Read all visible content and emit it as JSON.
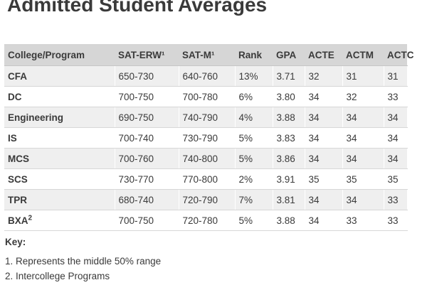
{
  "title": "Admitted Student Averages",
  "table": {
    "headers": [
      "College/Program",
      "SAT-ERW¹",
      "SAT-M¹",
      "Rank",
      "GPA",
      "ACTE",
      "ACTM",
      "ACTC"
    ],
    "rows": [
      {
        "program": "CFA",
        "program_sup": "",
        "sat_erw": "650-730",
        "sat_m": "640-760",
        "rank": "13%",
        "gpa": "3.71",
        "acte": "32",
        "actm": "31",
        "actc": "31"
      },
      {
        "program": "DC",
        "program_sup": "",
        "sat_erw": "700-750",
        "sat_m": "700-780",
        "rank": "6%",
        "gpa": "3.80",
        "acte": "34",
        "actm": "32",
        "actc": "33"
      },
      {
        "program": "Engineering",
        "program_sup": "",
        "sat_erw": "690-750",
        "sat_m": "740-790",
        "rank": "4%",
        "gpa": "3.88",
        "acte": "34",
        "actm": "34",
        "actc": "34"
      },
      {
        "program": "IS",
        "program_sup": "",
        "sat_erw": "700-740",
        "sat_m": "730-790",
        "rank": "5%",
        "gpa": "3.83",
        "acte": "34",
        "actm": "34",
        "actc": "34"
      },
      {
        "program": "MCS",
        "program_sup": "",
        "sat_erw": "700-760",
        "sat_m": "740-800",
        "rank": "5%",
        "gpa": "3.86",
        "acte": "34",
        "actm": "34",
        "actc": "34"
      },
      {
        "program": "SCS",
        "program_sup": "",
        "sat_erw": "730-770",
        "sat_m": "770-800",
        "rank": "2%",
        "gpa": "3.91",
        "acte": "35",
        "actm": "35",
        "actc": "35"
      },
      {
        "program": "TPR",
        "program_sup": "",
        "sat_erw": "680-740",
        "sat_m": "720-790",
        "rank": "7%",
        "gpa": "3.81",
        "acte": "34",
        "actm": "34",
        "actc": "33"
      },
      {
        "program": "BXA",
        "program_sup": "2",
        "sat_erw": "700-750",
        "sat_m": "720-780",
        "rank": "5%",
        "gpa": "3.88",
        "acte": "34",
        "actm": "33",
        "actc": "33"
      }
    ]
  },
  "key": {
    "title": "Key:",
    "items": [
      "1. Represents the middle 50% range",
      "2. Intercollege Programs"
    ]
  }
}
